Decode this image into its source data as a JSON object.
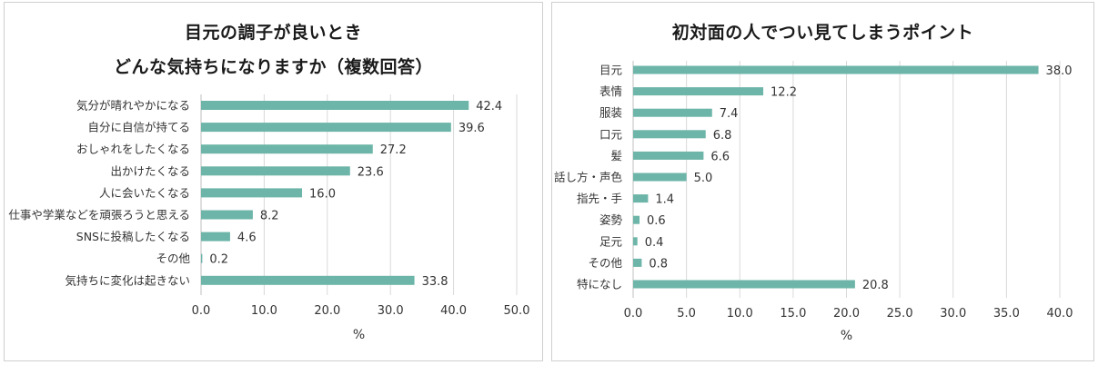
{
  "colors": {
    "bar": "#6cb5a8",
    "grid": "#d9d9d9",
    "axis": "#bfbfbf"
  },
  "chart_data": [
    {
      "type": "bar",
      "orientation": "horizontal",
      "title_line1": "目元の調子が良いとき",
      "title_line2": "どんな気持ちになりますか（複数回答）",
      "xlabel": "%",
      "xlim": [
        0,
        50
      ],
      "xticks": [
        "0.0",
        "10.0",
        "20.0",
        "30.0",
        "40.0",
        "50.0"
      ],
      "categories": [
        "気分が晴れやかになる",
        "自分に自信が持てる",
        "おしゃれをしたくなる",
        "出かけたくなる",
        "人に会いたくなる",
        "仕事や学業などを頑張ろうと思える",
        "SNSに投稿したくなる",
        "その他",
        "気持ちに変化は起きない"
      ],
      "values": [
        42.4,
        39.6,
        27.2,
        23.6,
        16.0,
        8.2,
        4.6,
        0.2,
        33.8
      ],
      "value_labels": [
        "42.4",
        "39.6",
        "27.2",
        "23.6",
        "16.0",
        "8.2",
        "4.6",
        "0.2",
        "33.8"
      ],
      "grid": true
    },
    {
      "type": "bar",
      "orientation": "horizontal",
      "title": "初対面の人でつい見てしまうポイント",
      "xlabel": "%",
      "xlim": [
        0,
        40
      ],
      "xticks": [
        "0.0",
        "5.0",
        "10.0",
        "15.0",
        "20.0",
        "25.0",
        "30.0",
        "35.0",
        "40.0"
      ],
      "categories": [
        "目元",
        "表情",
        "服装",
        "口元",
        "髪",
        "話し方・声色",
        "指先・手",
        "姿勢",
        "足元",
        "その他",
        "特になし"
      ],
      "values": [
        38.0,
        12.2,
        7.4,
        6.8,
        6.6,
        5.0,
        1.4,
        0.6,
        0.4,
        0.8,
        20.8
      ],
      "value_labels": [
        "38.0",
        "12.2",
        "7.4",
        "6.8",
        "6.6",
        "5.0",
        "1.4",
        "0.6",
        "0.4",
        "0.8",
        "20.8"
      ],
      "grid": true
    }
  ]
}
